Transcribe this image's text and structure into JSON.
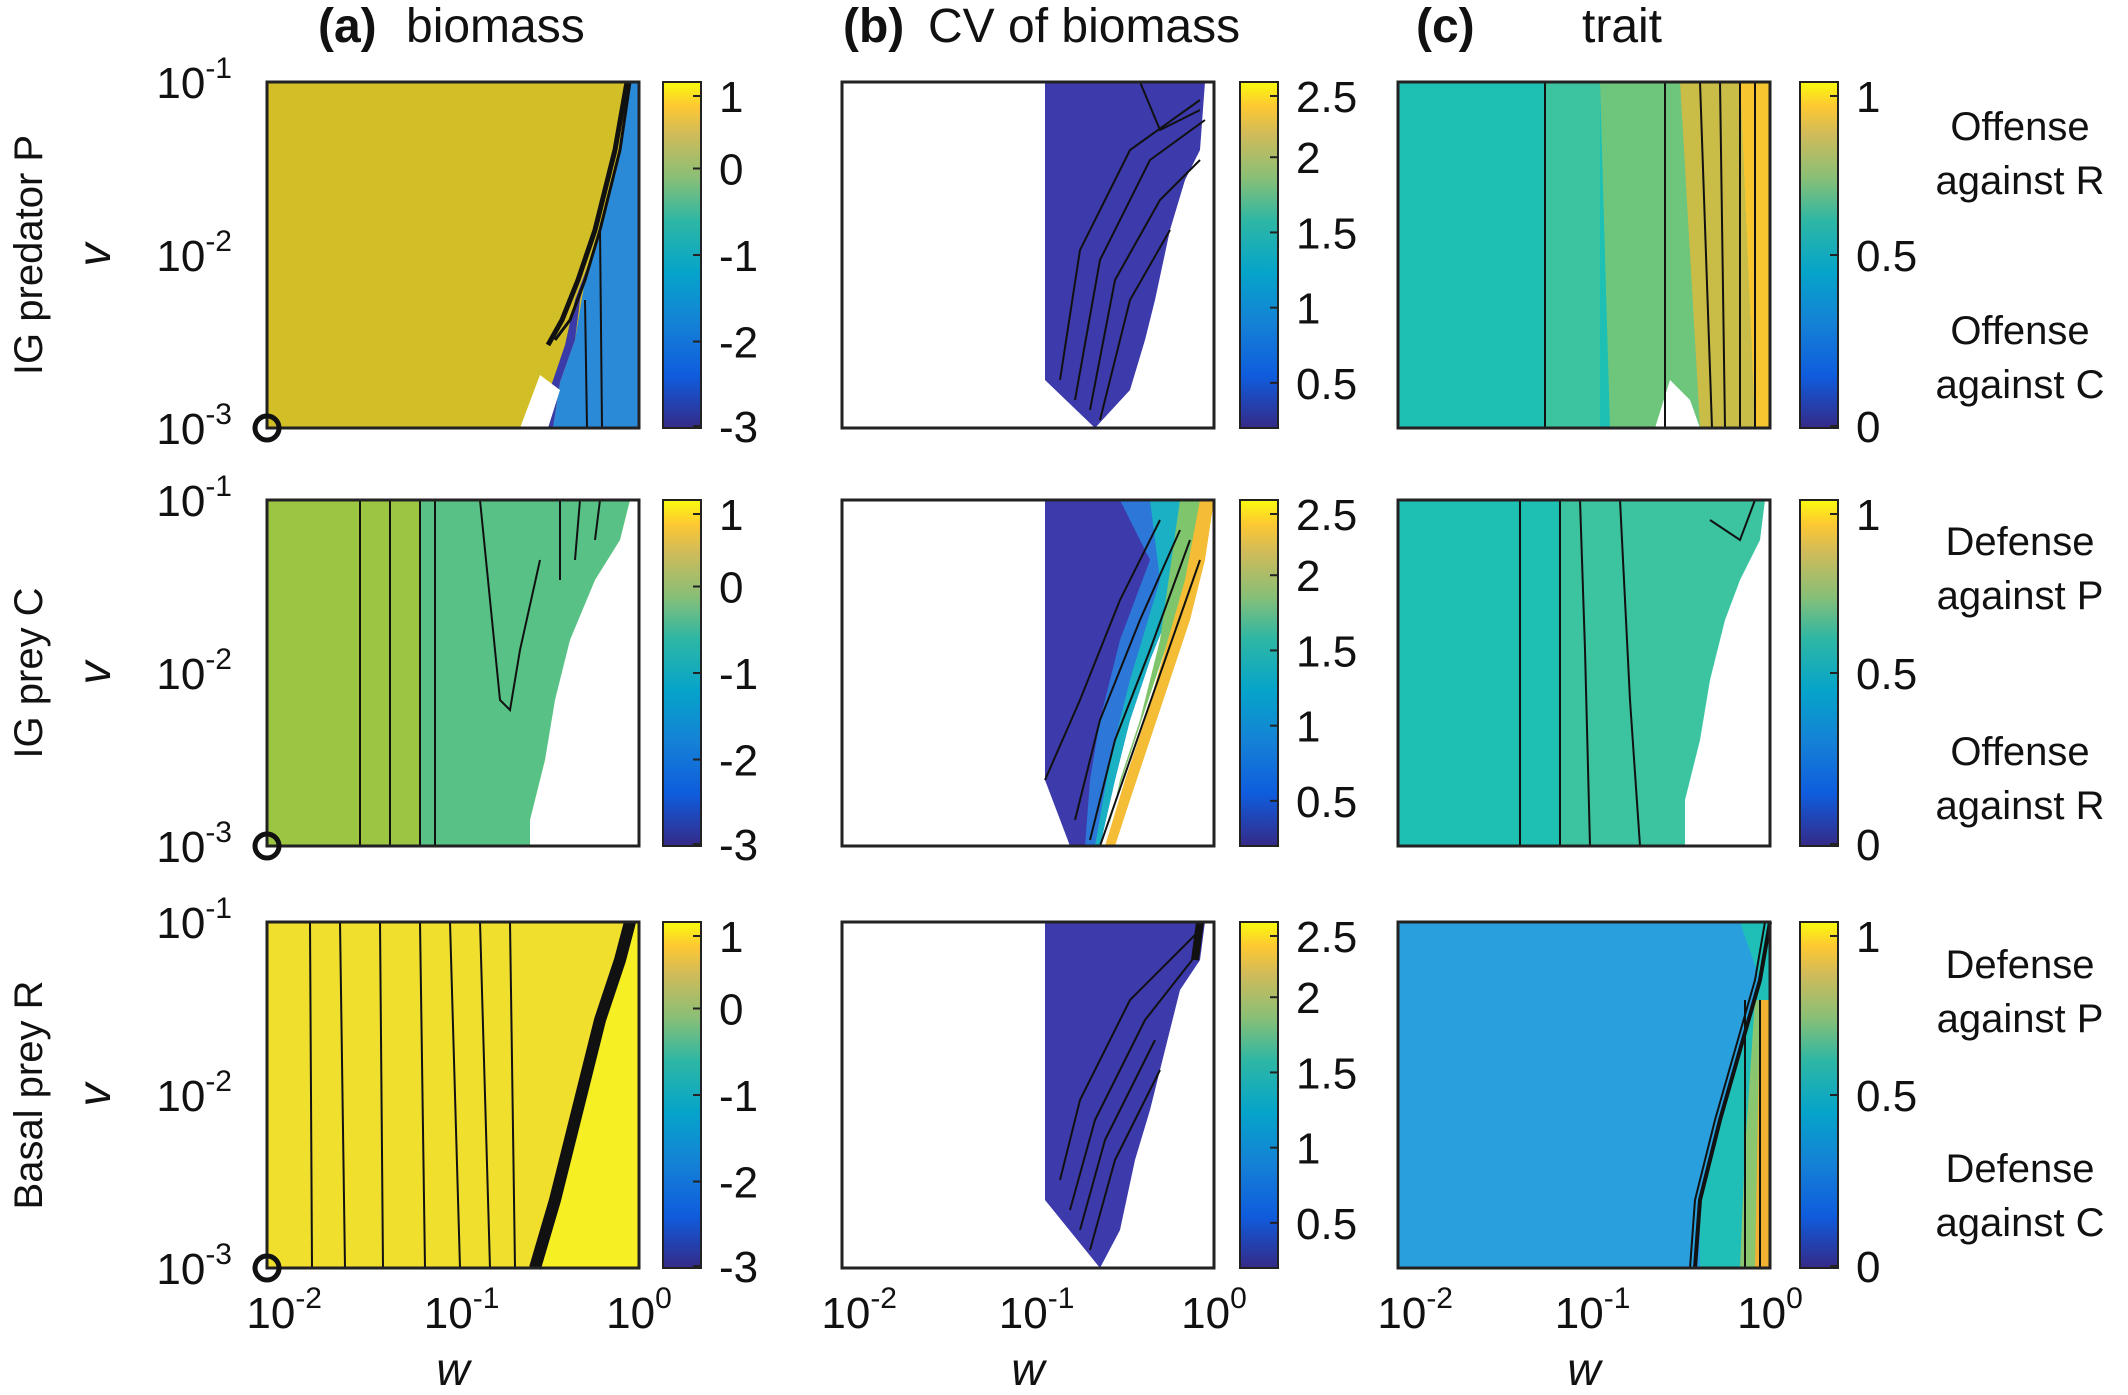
{
  "figure": {
    "columns": [
      {
        "letter": "(a)",
        "title": "biomass"
      },
      {
        "letter": "(b)",
        "title": "CV of biomass"
      },
      {
        "letter": "(c)",
        "title": "trait"
      }
    ],
    "rows": [
      {
        "label": "IG predator P",
        "trait_top": [
          "Offense",
          "against R"
        ],
        "trait_bottom": [
          "Offense",
          "against C"
        ]
      },
      {
        "label": "IG prey C",
        "trait_top": [
          "Defense",
          "against P"
        ],
        "trait_bottom": [
          "Offense",
          "against R"
        ]
      },
      {
        "label": "Basal prey R",
        "trait_top": [
          "Defense",
          "against P"
        ],
        "trait_bottom": [
          "Defense",
          "against C"
        ]
      }
    ],
    "xlabel": "w",
    "ylabel": "v"
  },
  "chart_data": {
    "type": "heatmap",
    "x_axis": {
      "label": "w",
      "scale": "log",
      "range": [
        0.008,
        1
      ],
      "ticks": [
        "10^-2",
        "10^-1",
        "10^0"
      ]
    },
    "y_axis": {
      "label": "v",
      "scale": "log",
      "range": [
        0.001,
        0.1
      ],
      "ticks": [
        "10^-3",
        "10^-2",
        "10^-1"
      ]
    },
    "colorbars": {
      "biomass": {
        "ticks": [
          1,
          0,
          -1,
          -2,
          -3
        ],
        "range": [
          -3,
          1
        ]
      },
      "cv": {
        "ticks": [
          2.5,
          2,
          1.5,
          1,
          0.5
        ],
        "range": [
          0.2,
          2.5
        ]
      },
      "trait": {
        "ticks": [
          1,
          0.5,
          0
        ],
        "range": [
          0,
          1
        ]
      }
    },
    "marker": {
      "type": "open-circle",
      "w": 0.008,
      "v": 0.001,
      "column": "biomass"
    },
    "panels": [
      {
        "row": "IG predator P",
        "column": "biomass",
        "dominant_value": 0.6,
        "low_region_min": -3
      },
      {
        "row": "IG predator P",
        "column": "CV of biomass",
        "w_min_defined": 0.1,
        "dominant_value": 0.2
      },
      {
        "row": "IG predator P",
        "column": "trait",
        "dominant_value": 0.45,
        "high_w_value": 1
      },
      {
        "row": "IG prey C",
        "column": "biomass",
        "dominant_value": -0.4
      },
      {
        "row": "IG prey C",
        "column": "CV of biomass",
        "w_min_defined": 0.1,
        "value_range": [
          0.2,
          2.5
        ]
      },
      {
        "row": "IG prey C",
        "column": "trait",
        "dominant_value": 0.45
      },
      {
        "row": "Basal prey R",
        "column": "biomass",
        "dominant_value": 0.95
      },
      {
        "row": "Basal prey R",
        "column": "CV of biomass",
        "w_min_defined": 0.1,
        "dominant_value": 0.2
      },
      {
        "row": "Basal prey R",
        "column": "trait",
        "dominant_value": 0.3,
        "high_w_value": 0.8
      }
    ]
  },
  "colors": {
    "parula_dark": "#352a87",
    "parula_blue": "#2b85d4",
    "parula_teal": "#1fbfb8",
    "parula_green": "#9dc440",
    "parula_olive": "#d4bf28",
    "parula_orange": "#f2b133",
    "parula_yellow": "#f9f024"
  }
}
